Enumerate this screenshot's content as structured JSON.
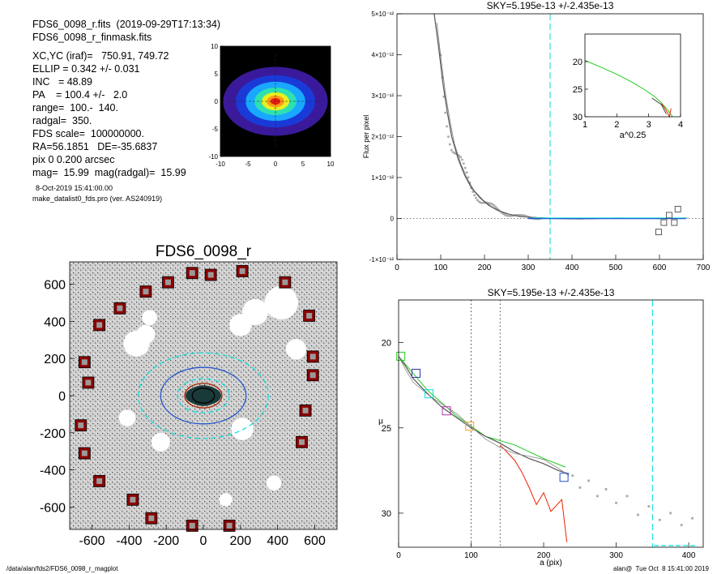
{
  "header": {
    "file_line": "FDS6_0098_r.fits  (2019-09-29T17:13:34)",
    "mask_line": "FDS6_0098_r_finmask.fits"
  },
  "info_lines": [
    "XC,YC (iraf)=   750.91, 749.72",
    "ELLIP = 0.342 +/- 0.031",
    "INC   = 48.89",
    "PA    = 100.4 +/-   2.0",
    "range=  100.-  140.",
    "radgal=  350.",
    "FDS scale=  100000000.",
    "RA=56.1851   DE=-35.6837",
    "pix 0 0.200 arcsec",
    "mag=  15.99  mag(radgal)=  15.99"
  ],
  "date_line": "8-Oct-2019 15:41:00.00",
  "program_line": "make_datalist0_fds.pro (ver. AS240919)",
  "footer": {
    "left": "/data/alan/fds2/FDS6_0098_r_magplot",
    "right": "alan@  Tue Oct  8 15:41:00 2019"
  },
  "colors": {
    "grey_profile": "#555555",
    "grey_points": "#aaaaaa",
    "cyan": "#00dddd",
    "blue_fit": "#2255cc",
    "red": "#ee2200",
    "green": "#22cc22",
    "frame_marker": "#8b0000"
  },
  "chart_data": [
    {
      "id": "thumbnail",
      "type": "heatmap",
      "xlim": [
        -10,
        10
      ],
      "ylim": [
        -10,
        10
      ],
      "x_ticks": [
        "-10",
        "-5",
        "0",
        "5",
        "10"
      ],
      "y_ticks": [
        "10",
        "5",
        "0",
        "-5",
        "-10"
      ],
      "ellip": 0.342,
      "pa_deg": 100.4,
      "levels": [
        {
          "color": "#3a1a9a",
          "r": 9.5
        },
        {
          "color": "#1a3ad8",
          "r": 7.2
        },
        {
          "color": "#19a8ff",
          "r": 5.4
        },
        {
          "color": "#2fe0b0",
          "r": 3.8
        },
        {
          "color": "#e8f020",
          "r": 2.5
        },
        {
          "color": "#ff9a18",
          "r": 1.6
        },
        {
          "color": "#e81e10",
          "r": 0.9
        }
      ]
    },
    {
      "id": "sky_flux",
      "type": "scatter",
      "title": "SKY=5.195e-13 +/-2.435e-13",
      "ylabel": "Flux per pixel",
      "xlim": [
        0,
        700
      ],
      "ylim": [
        -1e-12,
        5e-12
      ],
      "x_ticks": [
        "0",
        "100",
        "200",
        "300",
        "400",
        "500",
        "600",
        "700"
      ],
      "y_ticks": [
        "-1×10⁻¹²",
        "0",
        "1×10⁻¹²",
        "2×10⁻¹²",
        "3×10⁻¹²",
        "4×10⁻¹²",
        "5×10⁻¹²"
      ],
      "radgal_line": 350,
      "decay": {
        "x": [
          85,
          95,
          105,
          115,
          125,
          140,
          155,
          170,
          190,
          210,
          230,
          250,
          280,
          320,
          360,
          420,
          500,
          600,
          660
        ],
        "y": [
          5.2e-12,
          4.2e-12,
          3.3e-12,
          2.6e-12,
          2e-12,
          1.45e-12,
          1.05e-12,
          7.5e-13,
          5e-13,
          3.2e-13,
          2e-13,
          1.2e-13,
          5e-14,
          2e-14,
          0.0,
          -1e-14,
          1e-14,
          0.0,
          1e-14
        ]
      },
      "square_markers": [
        {
          "x": 598,
          "y": -3.3e-13
        },
        {
          "x": 610,
          "y": -1e-13
        },
        {
          "x": 622,
          "y": 8e-14
        },
        {
          "x": 634,
          "y": -1e-13
        },
        {
          "x": 642,
          "y": 2.3e-13
        }
      ],
      "inset": {
        "xlabel": "a^0.25",
        "xlim": [
          1,
          4
        ],
        "ylim": [
          30,
          15
        ],
        "x_ticks": [
          "1",
          "2",
          "3",
          "4"
        ],
        "y_ticks": [
          "20",
          "25",
          "30"
        ],
        "green": {
          "x": [
            1.0,
            1.5,
            2.0,
            2.5,
            2.9,
            3.2,
            3.4,
            3.6,
            3.7,
            3.75
          ],
          "y": [
            19.8,
            21.0,
            22.3,
            23.8,
            25.2,
            26.4,
            27.5,
            28.8,
            29.6,
            30.0
          ]
        },
        "red": {
          "x": [
            3.4,
            3.5,
            3.6,
            3.65,
            3.7
          ],
          "y": [
            27.6,
            28.4,
            29.4,
            30.0,
            28.5
          ]
        }
      }
    },
    {
      "id": "mask_image",
      "type": "scatter",
      "title": "FDS6_0098_r",
      "xlim": [
        -720,
        720
      ],
      "ylim": [
        -720,
        720
      ],
      "x_ticks": [
        "-600",
        "-400",
        "-200",
        "0",
        "200",
        "400",
        "600"
      ],
      "y_ticks": [
        "600",
        "400",
        "200",
        "0",
        "-200",
        "-400",
        "-600"
      ],
      "ellipses": [
        {
          "a": 350,
          "b": 230,
          "color": "#00dddd",
          "dash": true
        },
        {
          "a": 230,
          "b": 152,
          "color": "#2255cc",
          "dash": false
        },
        {
          "a": 140,
          "b": 92,
          "color": "#00dddd",
          "dash": true
        },
        {
          "a": 100,
          "b": 66,
          "color": "#aa2200",
          "dash": false
        },
        {
          "a": 60,
          "b": 40,
          "color": "#000000",
          "dash": false
        }
      ],
      "frame_points": [
        [
          -60,
          660
        ],
        [
          40,
          650
        ],
        [
          210,
          670
        ],
        [
          -190,
          610
        ],
        [
          -310,
          560
        ],
        [
          -450,
          470
        ],
        [
          -560,
          380
        ],
        [
          -640,
          180
        ],
        [
          -620,
          70
        ],
        [
          -660,
          -160
        ],
        [
          -640,
          -310
        ],
        [
          -560,
          -460
        ],
        [
          -380,
          -560
        ],
        [
          -280,
          -660
        ],
        [
          -60,
          -700
        ],
        [
          140,
          -700
        ],
        [
          440,
          610
        ],
        [
          570,
          430
        ],
        [
          590,
          210
        ],
        [
          590,
          110
        ],
        [
          550,
          -80
        ],
        [
          530,
          -250
        ]
      ],
      "holes": [
        [
          -360,
          280,
          70
        ],
        [
          420,
          500,
          90
        ],
        [
          200,
          380,
          60
        ],
        [
          -290,
          420,
          40
        ],
        [
          500,
          250,
          55
        ],
        [
          -410,
          -120,
          45
        ],
        [
          210,
          -180,
          60
        ],
        [
          -310,
          330,
          50
        ],
        [
          280,
          450,
          70
        ],
        [
          380,
          -470,
          40
        ],
        [
          -230,
          -250,
          50
        ],
        [
          120,
          -560,
          35
        ]
      ]
    },
    {
      "id": "mu_profile",
      "type": "line",
      "title": "SKY=5.195e-13 +/-2.435e-13",
      "xlabel": "a (pix)",
      "ylabel": "μ",
      "xlim": [
        0,
        420
      ],
      "ylim": [
        32,
        17.5
      ],
      "x_ticks": [
        "0",
        "100",
        "200",
        "300",
        "400"
      ],
      "y_ticks": [
        "20",
        "25",
        "30"
      ],
      "range_lines": [
        100,
        140
      ],
      "radgal_line": 350,
      "profile": {
        "x": [
          0,
          10,
          20,
          40,
          60,
          80,
          100,
          120,
          140,
          160,
          180,
          200,
          220,
          235
        ],
        "y": [
          20.8,
          21.4,
          22.1,
          23.0,
          23.8,
          24.4,
          25.0,
          25.5,
          25.9,
          26.4,
          26.8,
          27.1,
          27.5,
          27.7
        ]
      },
      "green": {
        "x": [
          0,
          40,
          80,
          120,
          160,
          200,
          230
        ],
        "y": [
          20.8,
          22.8,
          24.3,
          25.5,
          26.0,
          26.8,
          27.3
        ]
      },
      "red": {
        "x": [
          140,
          160,
          170,
          180,
          190,
          200,
          210,
          225,
          232
        ],
        "y": [
          26.0,
          26.9,
          27.6,
          28.5,
          29.5,
          28.8,
          29.9,
          29.2,
          31.7
        ]
      },
      "markers": [
        {
          "x": 3,
          "y": 20.8,
          "color": "#22cc22"
        },
        {
          "x": 24,
          "y": 21.8,
          "color": "#3333aa"
        },
        {
          "x": 42,
          "y": 23.0,
          "color": "#00dddd"
        },
        {
          "x": 66,
          "y": 24.0,
          "color": "#aa33aa"
        },
        {
          "x": 98,
          "y": 24.9,
          "color": "#ff9a18"
        },
        {
          "x": 228,
          "y": 27.9,
          "color": "#2255cc"
        }
      ],
      "tail_points": {
        "x": [
          240,
          250,
          262,
          274,
          286,
          300,
          315,
          330,
          345,
          360,
          375,
          390,
          405
        ],
        "y": [
          27.8,
          28.5,
          28.1,
          29.0,
          28.6,
          29.4,
          29.0,
          30.1,
          29.6,
          30.4,
          30.0,
          30.7,
          30.3
        ]
      }
    }
  ]
}
